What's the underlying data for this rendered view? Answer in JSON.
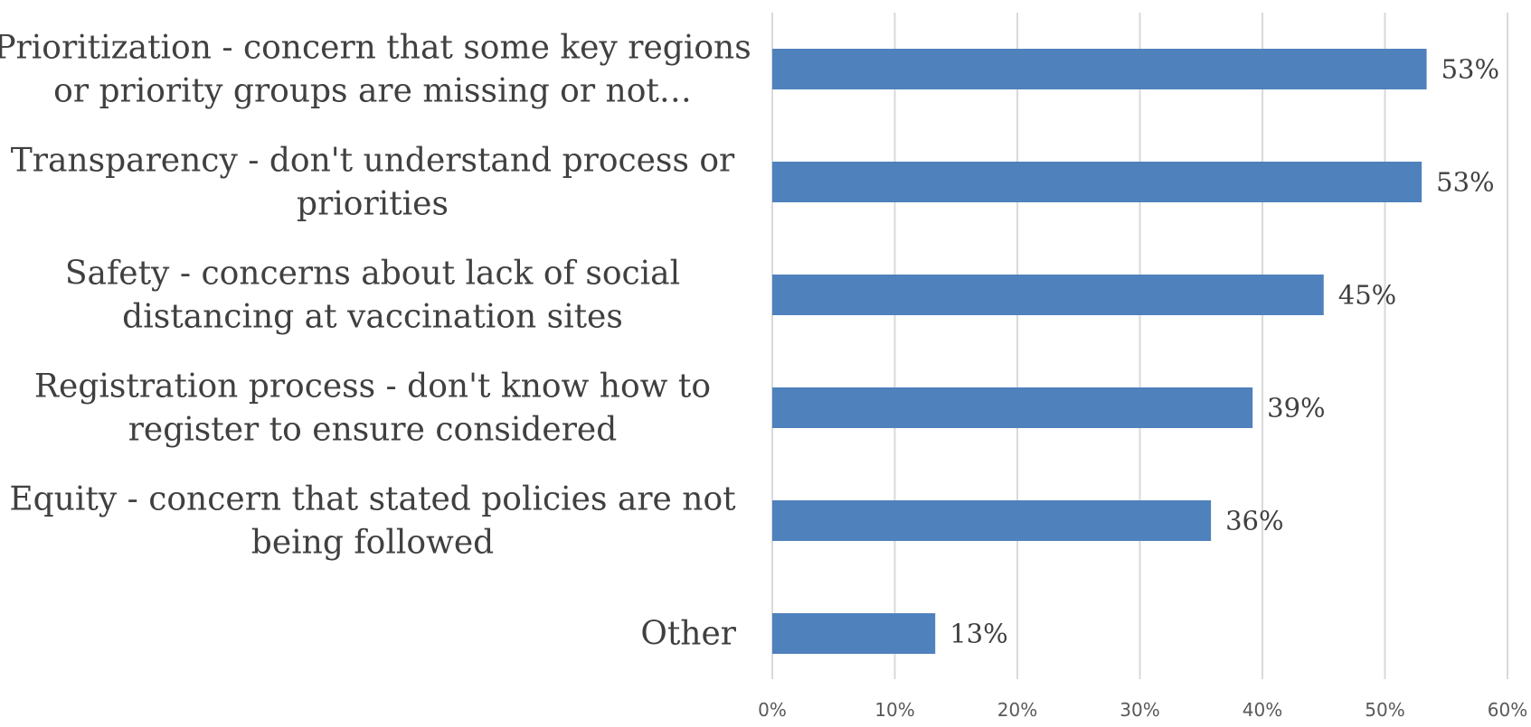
{
  "chart_data": {
    "type": "bar",
    "orientation": "horizontal",
    "categories": [
      [
        "Prioritization - concern that some key regions",
        "or priority groups are missing or not…"
      ],
      [
        "Transparency - don't understand process or",
        "priorities"
      ],
      [
        "Safety - concerns about lack of social",
        "distancing at vaccination sites"
      ],
      [
        "Registration process - don't know how to",
        "register to ensure considered"
      ],
      [
        "Equity - concern that stated policies are not",
        "being followed"
      ],
      [
        "Other"
      ]
    ],
    "values": [
      53.4,
      53.0,
      45.0,
      39.2,
      35.8,
      13.3
    ],
    "data_labels": [
      "53%",
      "53%",
      "45%",
      "39%",
      "36%",
      "13%"
    ],
    "xlim": [
      0,
      60
    ],
    "x_ticks": [
      0,
      10,
      20,
      30,
      40,
      50,
      60
    ],
    "x_tick_labels": [
      "0%",
      "10%",
      "20%",
      "30%",
      "40%",
      "50%",
      "60%"
    ],
    "grid": "vertical",
    "legend": "none",
    "bar_color": "#4f81bd"
  }
}
